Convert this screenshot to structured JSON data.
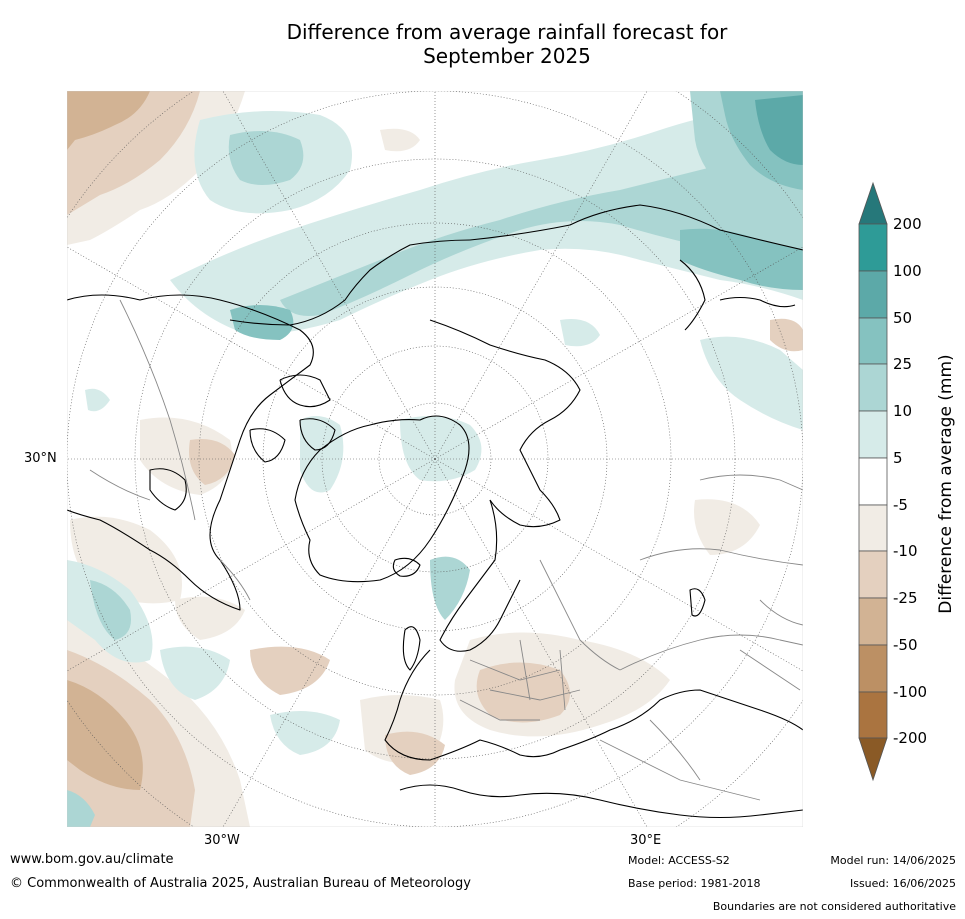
{
  "title": {
    "line1": "Difference from average rainfall forecast for",
    "line2": "September 2025"
  },
  "map": {
    "projection": "north polar stereographic",
    "lat_label_left": "30°N",
    "lon_label_bottom_left": "30°W",
    "lon_label_bottom_right": "30°E"
  },
  "colorbar": {
    "title": "Difference from average (mm)",
    "extend": "both",
    "levels": [
      "200",
      "100",
      "50",
      "25",
      "10",
      "5",
      "-5",
      "-10",
      "-25",
      "-50",
      "-100",
      "-200"
    ],
    "colors": [
      {
        "range": "above 200",
        "color": "#26787a"
      },
      {
        "range": "100 to 200",
        "color": "#2e9b97"
      },
      {
        "range": "50 to 100",
        "color": "#5ca9a8"
      },
      {
        "range": "25 to 50",
        "color": "#85c2c0"
      },
      {
        "range": "10 to 25",
        "color": "#acd6d4"
      },
      {
        "range": "5 to 10",
        "color": "#d6ebe9"
      },
      {
        "range": "-5 to 5",
        "color": "#ffffff"
      },
      {
        "range": "-10 to -5",
        "color": "#f1ece5"
      },
      {
        "range": "-25 to -10",
        "color": "#e4d0bf"
      },
      {
        "range": "-50 to -25",
        "color": "#d2b394"
      },
      {
        "range": "-100 to -50",
        "color": "#bc9064"
      },
      {
        "range": "-200 to -100",
        "color": "#aa7440"
      },
      {
        "range": "below -200",
        "color": "#8a5a26"
      }
    ]
  },
  "footer": {
    "website": "www.bom.gov.au/climate",
    "copyright": "© Commonwealth of Australia 2025, Australian Bureau of Meteorology",
    "model": "Model: ACCESS-S2",
    "base_period": "Base period: 1981-2018",
    "model_run": "Model run: 14/06/2025",
    "issued": "Issued: 16/06/2025",
    "disclaimer": "Boundaries are not considered authoritative"
  }
}
